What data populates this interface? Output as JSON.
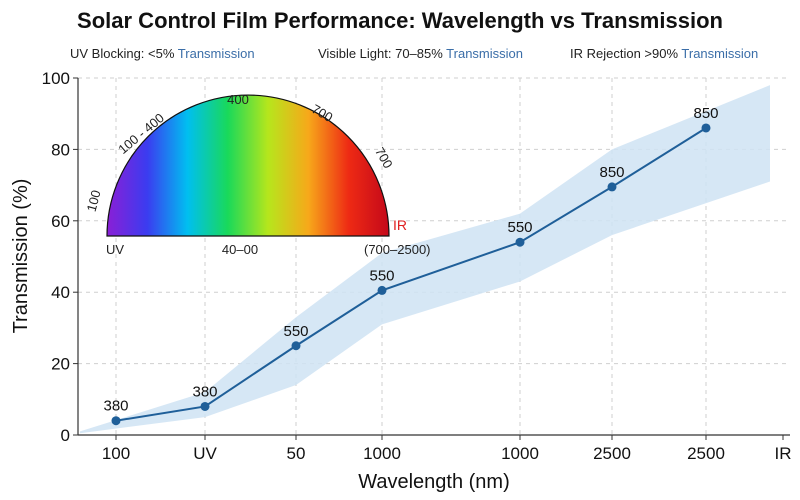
{
  "chart_data": {
    "type": "line",
    "title": "Solar Control Film Performance: Wavelength vs Transmission",
    "annotations": [
      {
        "prefix": "UV Blocking: <5%",
        "suffix": " Transmission"
      },
      {
        "prefix": "Visible Light: 70–85%",
        "suffix": " Transmission"
      },
      {
        "prefix": "IR Rejection >90%",
        "suffix": " Transmission"
      }
    ],
    "xlabel": "Wavelength (nm)",
    "ylabel": "Transmission (%)",
    "x_tick_labels": [
      "100",
      "UV",
      "50",
      "1000",
      "1000",
      "2500",
      "2500",
      "IR"
    ],
    "y_ticks": [
      0,
      20,
      40,
      60,
      80,
      100
    ],
    "ylim": [
      0,
      100
    ],
    "grid": true,
    "series": [
      {
        "x_index": [
          0,
          1,
          2,
          3,
          4,
          5,
          6
        ],
        "values": [
          4,
          8,
          25,
          40.5,
          54,
          69.5,
          86
        ],
        "point_labels": [
          "380",
          "380",
          "550",
          "550",
          "550",
          "850",
          "850"
        ],
        "color": "#1f5f99"
      }
    ],
    "band": {
      "lower": [
        0.5,
        5,
        14,
        31,
        43,
        56,
        71
      ],
      "upper": [
        1,
        12,
        33,
        51,
        62,
        80,
        98
      ],
      "color": "#cfe3f3"
    },
    "spectrum_inset": {
      "top_labels": [
        "100 - 400",
        "400",
        "700",
        "700",
        "100"
      ],
      "bottom_labels": [
        "UV",
        "40–00",
        "(700–2500)"
      ],
      "ir_label": "IR",
      "colors": [
        "#8a1fd6",
        "#3b3cf0",
        "#00bff0",
        "#19d95a",
        "#b6e61c",
        "#f7a81a",
        "#ee2a14",
        "#c4081a"
      ]
    }
  }
}
